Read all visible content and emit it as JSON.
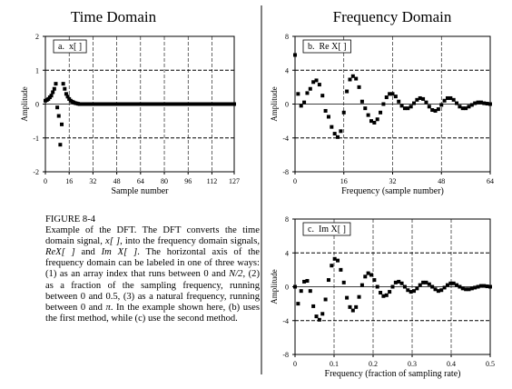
{
  "headings": [
    "Time Domain",
    "Frequency Domain"
  ],
  "chart_data": [
    {
      "type": "scatter",
      "label": "a.  x[ ]",
      "xlabel": "Sample number",
      "ylabel": "Amplitude",
      "color": "#000000",
      "marker": "square",
      "grid": true,
      "xlim": [
        0,
        127
      ],
      "ylim": [
        -2,
        2
      ],
      "xticks": [
        0,
        16,
        32,
        48,
        64,
        80,
        96,
        112,
        127
      ],
      "yticks": [
        -2,
        -1,
        0,
        1,
        2
      ],
      "x": [
        0,
        1,
        2,
        3,
        4,
        5,
        6,
        7,
        8,
        9,
        10,
        11,
        12,
        13,
        14,
        15,
        16,
        17,
        18,
        19,
        20,
        21,
        22,
        23,
        24,
        25,
        26,
        27,
        28,
        29,
        30,
        31,
        32,
        33,
        34,
        35,
        36,
        37,
        38,
        39,
        40,
        41,
        42,
        43,
        44,
        45,
        46,
        47,
        48,
        49,
        50,
        51,
        52,
        53,
        54,
        55,
        56,
        57,
        58,
        59,
        60,
        61,
        62,
        63,
        64,
        65,
        66,
        67,
        68,
        69,
        70,
        71,
        72,
        73,
        74,
        75,
        76,
        77,
        78,
        79,
        80,
        81,
        82,
        83,
        84,
        85,
        86,
        87,
        88,
        89,
        90,
        91,
        92,
        93,
        94,
        95,
        96,
        97,
        98,
        99,
        100,
        101,
        102,
        103,
        104,
        105,
        106,
        107,
        108,
        109,
        110,
        111,
        112,
        113,
        114,
        115,
        116,
        117,
        118,
        119,
        120,
        121,
        122,
        123,
        124,
        125,
        126,
        127
      ],
      "values": [
        0.1,
        0.12,
        0.15,
        0.2,
        0.25,
        0.35,
        0.45,
        0.6,
        -0.1,
        -0.35,
        -1.2,
        -0.6,
        0.6,
        0.45,
        0.3,
        0.22,
        0.15,
        0.1,
        0.07,
        0.05,
        0.03,
        0.02,
        0.01,
        0,
        0,
        0,
        0,
        0,
        0,
        0,
        0,
        0,
        0,
        0,
        0,
        0,
        0,
        0,
        0,
        0,
        0,
        0,
        0,
        0,
        0,
        0,
        0,
        0,
        0,
        0,
        0,
        0,
        0,
        0,
        0,
        0,
        0,
        0,
        0,
        0,
        0,
        0,
        0,
        0,
        0,
        0,
        0,
        0,
        0,
        0,
        0,
        0,
        0,
        0,
        0,
        0,
        0,
        0,
        0,
        0,
        0,
        0,
        0,
        0,
        0,
        0,
        0,
        0,
        0,
        0,
        0,
        0,
        0,
        0,
        0,
        0,
        0,
        0,
        0,
        0,
        0,
        0,
        0,
        0,
        0,
        0,
        0,
        0,
        0,
        0,
        0,
        0,
        0,
        0,
        0,
        0,
        0,
        0,
        0,
        0,
        0,
        0,
        0,
        0,
        0,
        0,
        0,
        0
      ]
    },
    {
      "type": "scatter",
      "label": "b.  Re X[ ]",
      "xlabel": "Frequency (sample number)",
      "ylabel": "Amplitude",
      "color": "#000000",
      "marker": "square",
      "grid": true,
      "xlim": [
        0,
        64
      ],
      "ylim": [
        -8,
        8
      ],
      "xticks": [
        0,
        16,
        32,
        48,
        64
      ],
      "yticks": [
        -8,
        -4,
        0,
        4,
        8
      ],
      "x": [
        0,
        1,
        2,
        3,
        4,
        5,
        6,
        7,
        8,
        9,
        10,
        11,
        12,
        13,
        14,
        15,
        16,
        17,
        18,
        19,
        20,
        21,
        22,
        23,
        24,
        25,
        26,
        27,
        28,
        29,
        30,
        31,
        32,
        33,
        34,
        35,
        36,
        37,
        38,
        39,
        40,
        41,
        42,
        43,
        44,
        45,
        46,
        47,
        48,
        49,
        50,
        51,
        52,
        53,
        54,
        55,
        56,
        57,
        58,
        59,
        60,
        61,
        62,
        63,
        64
      ],
      "values": [
        5.8,
        1.2,
        -0.2,
        0.2,
        1.3,
        1.8,
        2.6,
        2.8,
        2.3,
        1.0,
        -0.8,
        -1.5,
        -2.7,
        -3.5,
        -3.9,
        -3.2,
        -1.0,
        1.5,
        2.9,
        3.3,
        3.0,
        2.0,
        0.3,
        -0.5,
        -1.3,
        -2.0,
        -2.2,
        -1.8,
        -1.0,
        0,
        0.8,
        1.2,
        1.2,
        0.9,
        0.3,
        -0.2,
        -0.5,
        -0.5,
        -0.3,
        0.1,
        0.5,
        0.7,
        0.6,
        0.2,
        -0.3,
        -0.7,
        -0.8,
        -0.6,
        -0.1,
        0.4,
        0.7,
        0.7,
        0.5,
        0.1,
        -0.3,
        -0.5,
        -0.5,
        -0.3,
        -0.1,
        0.1,
        0.2,
        0.2,
        0.1,
        0.05,
        0
      ]
    },
    {
      "type": "scatter",
      "label": "c.  Im X[ ]",
      "xlabel": "Frequency (fraction of sampling rate)",
      "ylabel": "Amplitude",
      "color": "#000000",
      "marker": "square",
      "grid": true,
      "xlim": [
        0,
        0.5
      ],
      "ylim": [
        -8,
        8
      ],
      "xticks": [
        0,
        0.1,
        0.2,
        0.3,
        0.4,
        0.5
      ],
      "yticks": [
        -8,
        -4,
        0,
        4,
        8
      ],
      "x": [
        0,
        0.0078125,
        0.015625,
        0.0234375,
        0.03125,
        0.0390625,
        0.046875,
        0.0546875,
        0.0625,
        0.0703125,
        0.078125,
        0.0859375,
        0.09375,
        0.1015625,
        0.109375,
        0.1171875,
        0.125,
        0.1328125,
        0.140625,
        0.1484375,
        0.15625,
        0.1640625,
        0.171875,
        0.1796875,
        0.1875,
        0.1953125,
        0.203125,
        0.2109375,
        0.21875,
        0.2265625,
        0.234375,
        0.2421875,
        0.25,
        0.2578125,
        0.265625,
        0.2734375,
        0.28125,
        0.2890625,
        0.296875,
        0.3046875,
        0.3125,
        0.3203125,
        0.328125,
        0.3359375,
        0.34375,
        0.3515625,
        0.359375,
        0.3671875,
        0.375,
        0.3828125,
        0.390625,
        0.3984375,
        0.40625,
        0.4140625,
        0.421875,
        0.4296875,
        0.4375,
        0.4453125,
        0.453125,
        0.4609375,
        0.46875,
        0.4765625,
        0.484375,
        0.4921875,
        0.5
      ],
      "values": [
        0,
        -2.0,
        -0.5,
        0.6,
        0.7,
        -0.5,
        -2.3,
        -3.5,
        -3.9,
        -3.2,
        -1.5,
        0.8,
        2.5,
        3.3,
        3.1,
        2.0,
        0.5,
        -1.3,
        -2.4,
        -2.8,
        -2.4,
        -1.2,
        0.2,
        1.2,
        1.6,
        1.4,
        0.8,
        0,
        -0.7,
        -1.1,
        -1.0,
        -0.6,
        0,
        0.5,
        0.6,
        0.4,
        0,
        -0.4,
        -0.6,
        -0.5,
        -0.2,
        0.2,
        0.5,
        0.5,
        0.3,
        0,
        -0.3,
        -0.5,
        -0.4,
        -0.1,
        0.2,
        0.4,
        0.4,
        0.2,
        0,
        -0.2,
        -0.3,
        -0.3,
        -0.2,
        -0.1,
        0,
        0.1,
        0.1,
        0.05,
        0
      ]
    }
  ],
  "caption": {
    "title": "FIGURE 8-4",
    "runs": [
      {
        "text": "Example of the DFT. The DFT converts the time domain signal, ",
        "italic": false
      },
      {
        "text": "x[ ]",
        "italic": true
      },
      {
        "text": ", into the frequency domain signals, ",
        "italic": false
      },
      {
        "text": "ReX[ ]",
        "italic": true
      },
      {
        "text": " and ",
        "italic": false
      },
      {
        "text": "Im X[ ]",
        "italic": true
      },
      {
        "text": ". The horizontal axis of the frequency domain can be labeled in one of three ways: (1) as an array index that runs between 0 and ",
        "italic": false
      },
      {
        "text": "N/2",
        "italic": true
      },
      {
        "text": ", (2) as a fraction of the sampling frequency, running between 0 and 0.5, (3) as a natural frequency, running between 0 and ",
        "italic": false
      },
      {
        "text": "π",
        "italic": true
      },
      {
        "text": ". In the example shown here, (b) uses the first method, while (c) use the second method.",
        "italic": false
      }
    ]
  }
}
